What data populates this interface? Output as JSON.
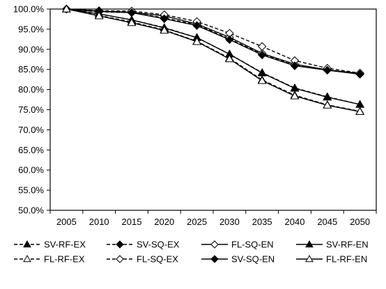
{
  "chart_data": {
    "type": "line",
    "x": [
      "2005",
      "2010",
      "2015",
      "2020",
      "2025",
      "2030",
      "2035",
      "2040",
      "2045",
      "2050"
    ],
    "ylim": [
      50,
      100
    ],
    "yticks": [
      "50.0%",
      "55.0%",
      "60.0%",
      "65.0%",
      "70.0%",
      "75.0%",
      "80.0%",
      "85.0%",
      "90.0%",
      "95.0%",
      "100.0%"
    ],
    "grid": false,
    "legend_position": "bottom",
    "series": [
      {
        "name": "SV-RF-EX",
        "marker": "triangle-filled",
        "dashed": true,
        "values": [
          100,
          98.8,
          97.3,
          95.4,
          92.9,
          88.8,
          84.2,
          80.4,
          78.2,
          76.3
        ]
      },
      {
        "name": "SV-SQ-EX",
        "marker": "diamond-filled",
        "dashed": true,
        "values": [
          100,
          99.3,
          99.1,
          97.8,
          96.1,
          92.6,
          88.8,
          86.0,
          84.9,
          83.9
        ]
      },
      {
        "name": "FL-SQ-EN",
        "marker": "diamond-open",
        "dashed": false,
        "values": [
          100,
          99.5,
          99.2,
          98.3,
          96.3,
          93.0,
          89.0,
          86.3,
          84.9,
          84.0
        ]
      },
      {
        "name": "SV-RF-EN",
        "marker": "triangle-filled",
        "dashed": false,
        "values": [
          100,
          98.8,
          97.3,
          95.3,
          92.9,
          88.8,
          84.1,
          80.3,
          78.1,
          76.3
        ]
      },
      {
        "name": "FL-RF-EX",
        "marker": "triangle-open",
        "dashed": true,
        "values": [
          100,
          98.4,
          96.8,
          94.8,
          92.0,
          87.8,
          82.4,
          78.6,
          76.2,
          74.6
        ]
      },
      {
        "name": "FL-SQ-EX",
        "marker": "diamond-open",
        "dashed": true,
        "values": [
          100,
          99.6,
          99.5,
          98.6,
          96.9,
          94.0,
          90.7,
          87.2,
          85.3,
          84.1
        ]
      },
      {
        "name": "SV-SQ-EN",
        "marker": "diamond-filled",
        "dashed": false,
        "values": [
          100,
          99.4,
          99.1,
          97.6,
          95.9,
          92.4,
          88.6,
          85.9,
          84.8,
          83.8
        ]
      },
      {
        "name": "FL-RF-EN",
        "marker": "triangle-open",
        "dashed": false,
        "values": [
          100,
          98.3,
          96.6,
          94.7,
          91.9,
          87.6,
          82.2,
          78.4,
          76.1,
          74.5
        ]
      }
    ]
  }
}
